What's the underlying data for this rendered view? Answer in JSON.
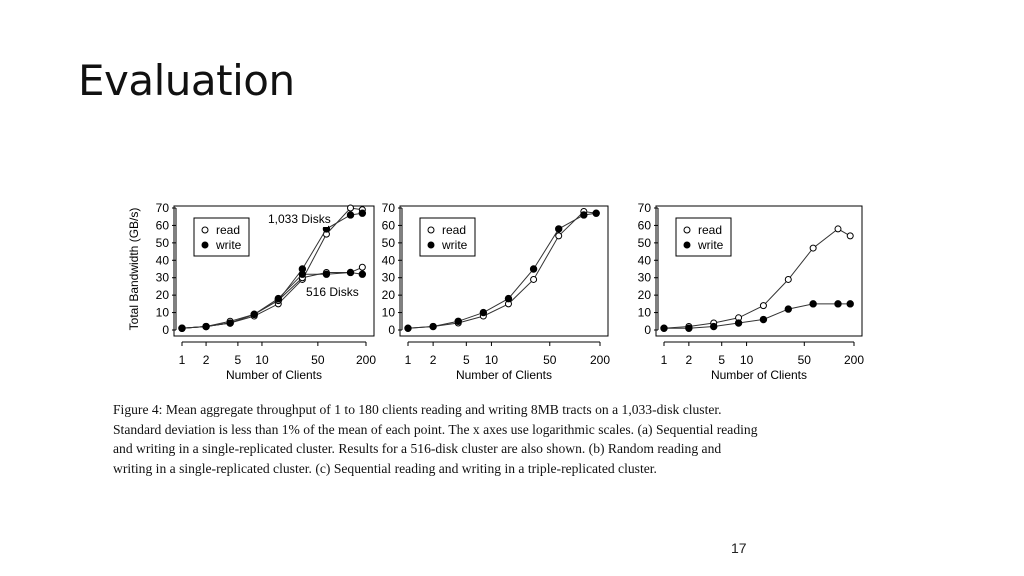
{
  "slide": {
    "title": "Evaluation",
    "page_number": "17"
  },
  "figure": {
    "caption_lines": [
      "Figure 4: Mean aggregate throughput of 1 to 180 clients reading and writing 8MB tracts on a 1,033-disk cluster.",
      "Standard deviation is less than 1% of the mean of each point. The x axes use logarithmic scales. (a) Sequential reading",
      "and writing in a single-replicated cluster. Results for a 516-disk cluster are also shown. (b) Random reading and",
      "writing in a single-replicated cluster. (c) Sequential reading and writing in a triple-replicated cluster."
    ]
  },
  "chart_data": [
    {
      "type": "line",
      "xscale": "log",
      "xlabel": "Number of Clients",
      "ylabel": "Total Bandwidth (GB/s)",
      "xticks": [
        1,
        2,
        5,
        10,
        50,
        200
      ],
      "xtick_labels": [
        "1",
        "2",
        "5",
        "10",
        "50",
        "200"
      ],
      "yticks": [
        0,
        10,
        20,
        30,
        40,
        50,
        60,
        70
      ],
      "ytick_labels": [
        "0",
        "10",
        "20",
        "30",
        "40",
        "50",
        "60",
        "70"
      ],
      "xlim": [
        1,
        200
      ],
      "ylim": [
        0,
        70
      ],
      "legend": {
        "position": "top-left",
        "entries": [
          "read",
          "write"
        ]
      },
      "annotations": [
        "1,033 Disks",
        "516 Disks"
      ],
      "series": [
        {
          "name": "read",
          "marker": "open",
          "x": [
            1,
            2,
            4,
            8,
            16,
            32,
            64,
            128,
            180
          ],
          "y": [
            1,
            2,
            4,
            8,
            15,
            29,
            55,
            70,
            69
          ]
        },
        {
          "name": "write",
          "marker": "filled",
          "x": [
            1,
            2,
            4,
            8,
            16,
            32,
            64,
            128,
            180
          ],
          "y": [
            1,
            2,
            4,
            9,
            17,
            35,
            58,
            66,
            67
          ]
        },
        {
          "marker": "open",
          "x": [
            1,
            2,
            4,
            8,
            16,
            32,
            64,
            128,
            180
          ],
          "y": [
            1,
            2,
            5,
            9,
            17,
            30,
            33,
            33,
            36
          ]
        },
        {
          "marker": "filled",
          "x": [
            1,
            2,
            4,
            8,
            16,
            32,
            64,
            128,
            180
          ],
          "y": [
            1,
            2,
            4,
            9,
            18,
            32,
            32,
            33,
            32
          ]
        }
      ]
    },
    {
      "type": "line",
      "xscale": "log",
      "xlabel": "Number of Clients",
      "xticks": [
        1,
        2,
        5,
        10,
        50,
        200
      ],
      "xtick_labels": [
        "1",
        "2",
        "5",
        "10",
        "50",
        "200"
      ],
      "yticks": [
        0,
        10,
        20,
        30,
        40,
        50,
        60,
        70
      ],
      "ytick_labels": [
        "0",
        "10",
        "20",
        "30",
        "40",
        "50",
        "60",
        "70"
      ],
      "xlim": [
        1,
        200
      ],
      "ylim": [
        0,
        70
      ],
      "legend": {
        "position": "top-left",
        "entries": [
          "read",
          "write"
        ]
      },
      "series": [
        {
          "name": "read",
          "marker": "open",
          "x": [
            1,
            2,
            4,
            8,
            16,
            32,
            64,
            128,
            180
          ],
          "y": [
            1,
            2,
            4,
            8,
            15,
            29,
            54,
            68,
            67
          ]
        },
        {
          "name": "write",
          "marker": "filled",
          "x": [
            1,
            2,
            4,
            8,
            16,
            32,
            64,
            128,
            180
          ],
          "y": [
            1,
            2,
            5,
            10,
            18,
            35,
            58,
            66,
            67
          ]
        }
      ]
    },
    {
      "type": "line",
      "xscale": "log",
      "xlabel": "Number of Clients",
      "xticks": [
        1,
        2,
        5,
        10,
        50,
        200
      ],
      "xtick_labels": [
        "1",
        "2",
        "5",
        "10",
        "50",
        "200"
      ],
      "yticks": [
        0,
        10,
        20,
        30,
        40,
        50,
        60,
        70
      ],
      "ytick_labels": [
        "0",
        "10",
        "20",
        "30",
        "40",
        "50",
        "60",
        "70"
      ],
      "xlim": [
        1,
        200
      ],
      "ylim": [
        0,
        70
      ],
      "legend": {
        "position": "top-left",
        "entries": [
          "read",
          "write"
        ]
      },
      "series": [
        {
          "name": "read",
          "marker": "open",
          "x": [
            1,
            2,
            4,
            8,
            16,
            32,
            64,
            128,
            180
          ],
          "y": [
            1,
            2,
            4,
            7,
            14,
            29,
            47,
            58,
            54
          ]
        },
        {
          "name": "write",
          "marker": "filled",
          "x": [
            1,
            2,
            4,
            8,
            16,
            32,
            64,
            128,
            180
          ],
          "y": [
            1,
            1,
            2,
            4,
            6,
            12,
            15,
            15,
            15
          ]
        }
      ]
    }
  ]
}
